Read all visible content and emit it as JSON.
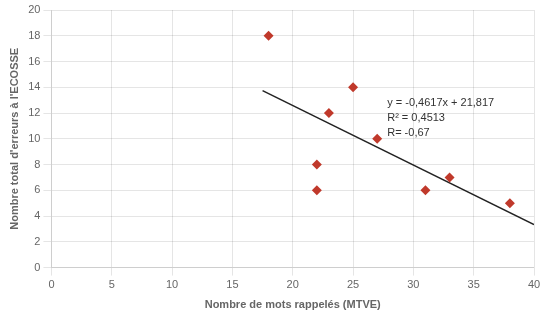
{
  "chart_data": {
    "type": "scatter",
    "x_label": "Nombre de mots rappelés (MTVE)",
    "y_label": "Nombre total d'erreurs à l'ECOSSE",
    "annotations": [
      "y = -0,4617x + 21,817",
      "R² = 0,4513",
      "R= -0,67"
    ],
    "series": [
      {
        "type": "line",
        "color": "#222222",
        "x": [
          17.5,
          40.0
        ],
        "values": [
          13.73725,
          3.349
        ]
      },
      {
        "type": "scatter",
        "color": "#C0392B",
        "marker": "diamond",
        "x": [
          18,
          22,
          22,
          23,
          25,
          27,
          31,
          33,
          38
        ],
        "values": [
          18,
          6,
          8,
          12,
          14,
          10,
          6,
          7,
          5
        ]
      }
    ],
    "xlim": [
      0,
      40
    ],
    "ylim": [
      0,
      20
    ],
    "xticks": [
      0,
      5,
      10,
      15,
      20,
      25,
      30,
      35,
      40
    ],
    "yticks": [
      0,
      2,
      4,
      6,
      8,
      10,
      12,
      14,
      16,
      18,
      20
    ],
    "grid": true
  }
}
